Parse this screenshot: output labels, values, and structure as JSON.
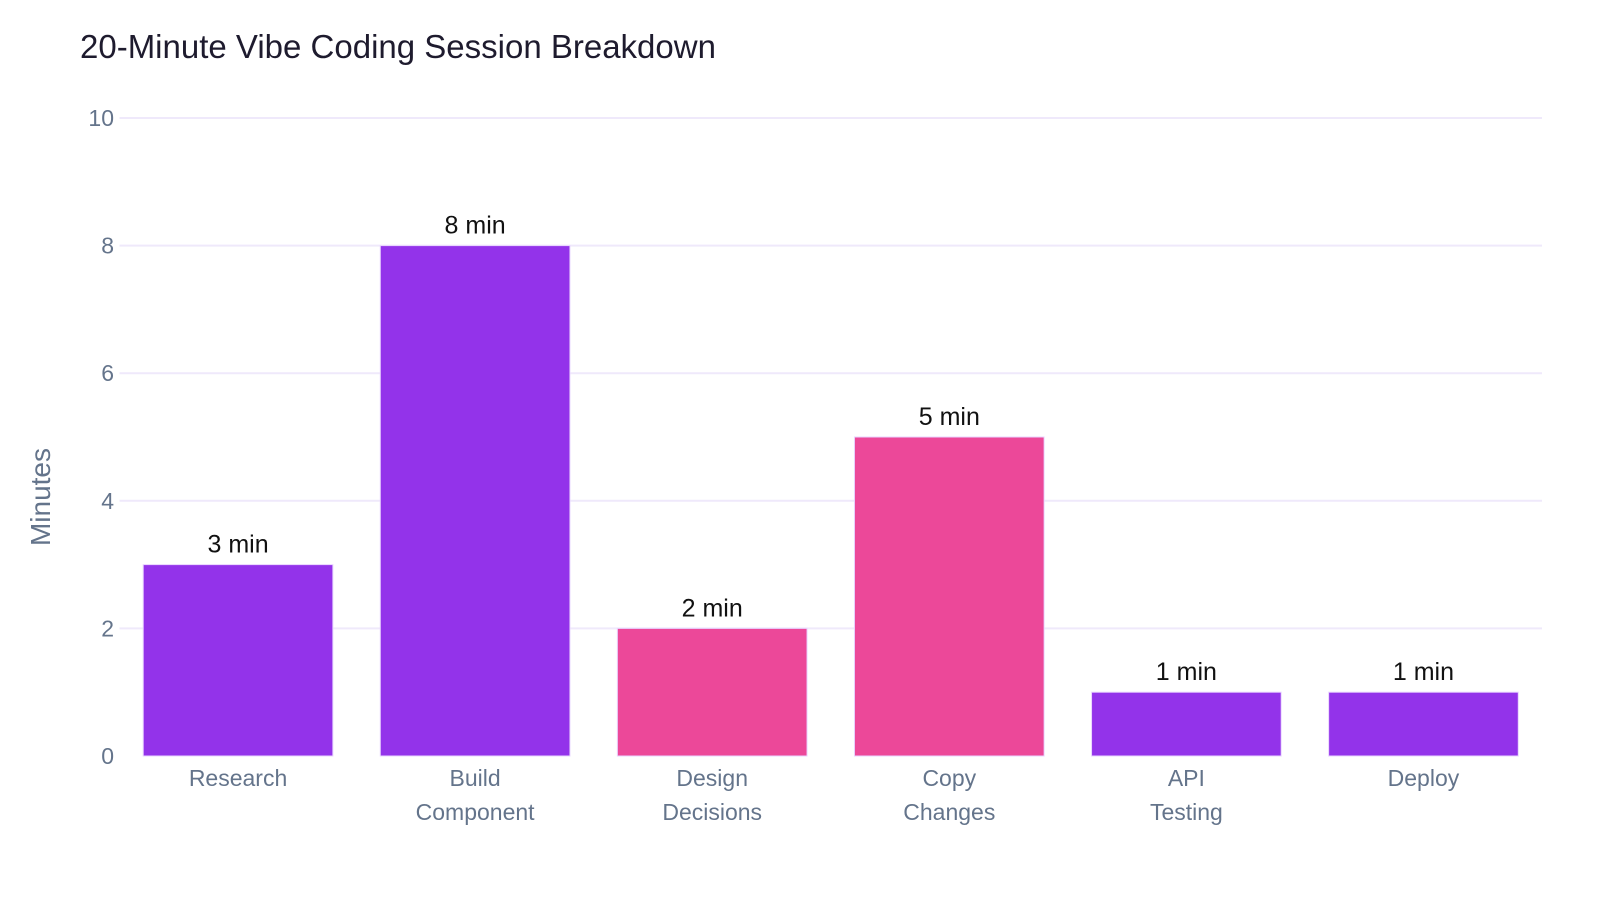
{
  "chart_data": {
    "type": "bar",
    "title": "20-Minute Vibe Coding Session Breakdown",
    "xlabel": "",
    "ylabel": "Minutes",
    "categories": [
      [
        "Research"
      ],
      [
        "Build",
        "Component"
      ],
      [
        "Design",
        "Decisions"
      ],
      [
        "Copy",
        "Changes"
      ],
      [
        "API",
        "Testing"
      ],
      [
        "Deploy"
      ]
    ],
    "values": [
      3,
      8,
      2,
      5,
      1,
      1
    ],
    "data_labels": [
      "3 min",
      "8 min",
      "2 min",
      "5 min",
      "1 min",
      "1 min"
    ],
    "bar_colors": [
      "#9333EA",
      "#9333EA",
      "#EC4899",
      "#EC4899",
      "#9333EA",
      "#9333EA"
    ],
    "ylim": [
      0,
      10
    ],
    "yticks": [
      0,
      2,
      4,
      6,
      8,
      10
    ],
    "grid": true,
    "legend": "none"
  }
}
